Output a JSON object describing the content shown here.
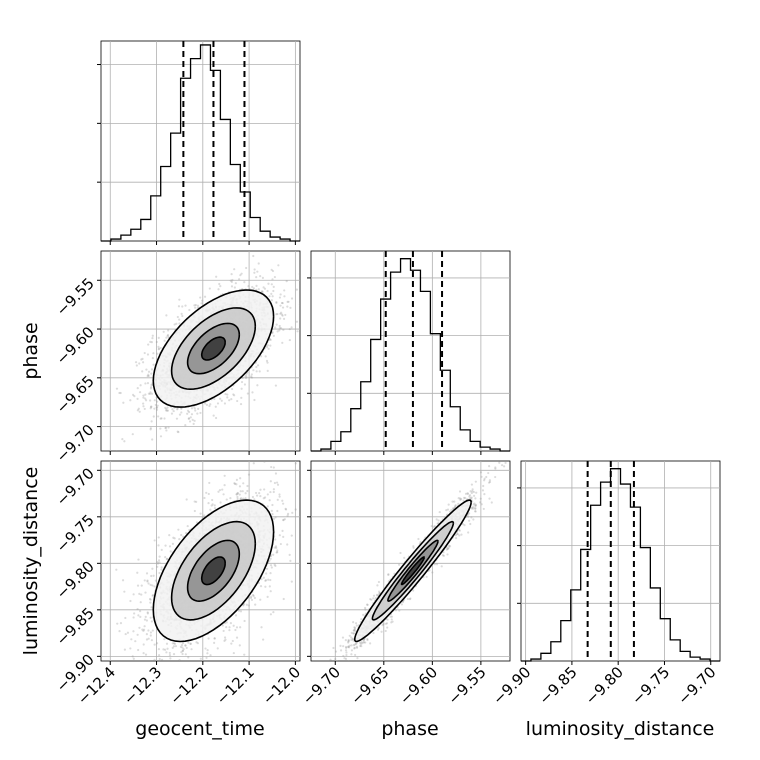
{
  "chart_data": {
    "type": "corner",
    "parameters": [
      "geocent_time",
      "phase",
      "luminosity_distance"
    ],
    "axis_labels": {
      "x": [
        "geocent_time",
        "phase",
        "luminosity_distance"
      ],
      "y": [
        "phase",
        "luminosity_distance"
      ]
    },
    "ranges": {
      "geocent_time": [
        -12.42,
        -11.99
      ],
      "phase": [
        -9.725,
        -9.52
      ],
      "luminosity_distance": [
        -9.905,
        -9.69
      ]
    },
    "ticks": {
      "geocent_time": [
        {
          "v": -12.4,
          "label": "−12.4"
        },
        {
          "v": -12.3,
          "label": "−12.3"
        },
        {
          "v": -12.2,
          "label": "−12.2"
        },
        {
          "v": -12.1,
          "label": "−12.1"
        },
        {
          "v": -12.0,
          "label": "−12.0"
        }
      ],
      "phase": [
        {
          "v": -9.7,
          "label": "−9.70"
        },
        {
          "v": -9.65,
          "label": "−9.65"
        },
        {
          "v": -9.6,
          "label": "−9.60"
        },
        {
          "v": -9.55,
          "label": "−9.55"
        }
      ],
      "luminosity_distance": [
        {
          "v": -9.9,
          "label": "−9.90"
        },
        {
          "v": -9.85,
          "label": "−9.85"
        },
        {
          "v": -9.8,
          "label": "−9.80"
        },
        {
          "v": -9.75,
          "label": "−9.75"
        },
        {
          "v": -9.7,
          "label": "−9.70"
        }
      ]
    },
    "quantiles": {
      "geocent_time": [
        -12.242,
        -12.177,
        -12.11
      ],
      "phase": [
        -9.648,
        -9.62,
        -9.59
      ],
      "luminosity_distance": [
        -9.833,
        -9.808,
        -9.783
      ]
    },
    "histograms": {
      "geocent_time": {
        "edges_start": -12.42,
        "bin_width": 0.0215,
        "ymax": 1.02,
        "counts": [
          0.0,
          0.01,
          0.03,
          0.06,
          0.11,
          0.23,
          0.38,
          0.55,
          0.83,
          0.93,
          1.0,
          0.87,
          0.62,
          0.39,
          0.25,
          0.12,
          0.05,
          0.02,
          0.01,
          0.0
        ]
      },
      "phase": {
        "edges_start": -9.725,
        "bin_width": 0.01025,
        "ymax": 1.04,
        "counts": [
          0.0,
          0.01,
          0.05,
          0.1,
          0.22,
          0.36,
          0.58,
          0.79,
          0.93,
          1.0,
          0.94,
          0.83,
          0.61,
          0.42,
          0.23,
          0.11,
          0.05,
          0.02,
          0.01,
          0.0
        ]
      },
      "luminosity_distance": {
        "edges_start": -9.905,
        "bin_width": 0.01075,
        "ymax": 1.04,
        "counts": [
          0.0,
          0.01,
          0.04,
          0.1,
          0.21,
          0.37,
          0.58,
          0.81,
          0.93,
          1.0,
          0.92,
          0.8,
          0.59,
          0.38,
          0.22,
          0.11,
          0.05,
          0.02,
          0.01,
          0.0
        ]
      }
    },
    "pairs": [
      {
        "x": "geocent_time",
        "y": "phase",
        "mean": [
          -12.177,
          -9.62
        ],
        "std": [
          0.065,
          0.03
        ],
        "corr": 0.55,
        "contour_levels": [
          0.39,
          0.86,
          1.39,
          2.0
        ]
      },
      {
        "x": "geocent_time",
        "y": "luminosity_distance",
        "mean": [
          -12.177,
          -9.808
        ],
        "std": [
          0.065,
          0.038
        ],
        "corr": 0.55,
        "contour_levels": [
          0.39,
          0.86,
          1.39,
          2.0
        ]
      },
      {
        "x": "phase",
        "y": "luminosity_distance",
        "mean": [
          -9.62,
          -9.808
        ],
        "std": [
          0.03,
          0.038
        ],
        "corr": 0.97,
        "contour_levels": [
          0.39,
          0.86,
          1.39,
          2.0
        ]
      }
    ],
    "grid": true,
    "colors": {
      "line": "#000000",
      "points": "#9a9a9a",
      "grid": "#b0b0b0"
    }
  }
}
